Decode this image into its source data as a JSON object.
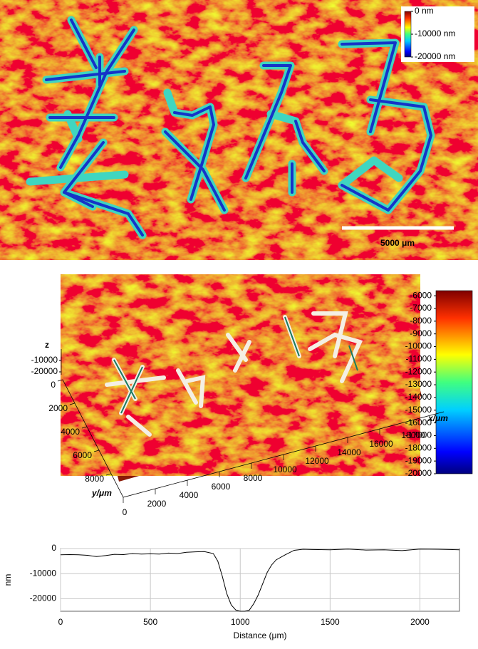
{
  "chart_data": [
    {
      "type": "height-map",
      "colorbar": {
        "lim": [
          -20000,
          0
        ],
        "ticks": [
          {
            "value": 0,
            "label": "0 nm"
          },
          {
            "value": -10000,
            "label": "-10000 nm"
          },
          {
            "value": -20000,
            "label": "-20000 nm"
          }
        ]
      },
      "scale_bar": {
        "value": 5000,
        "label": "5000 μm"
      }
    },
    {
      "type": "surface3d",
      "x_label": "x/μm",
      "y_label": "y/μm",
      "z_label": "z",
      "xlim": [
        0,
        20000
      ],
      "xticks": [
        0,
        2000,
        4000,
        6000,
        8000,
        10000,
        12000,
        14000,
        16000,
        18000
      ],
      "ylim": [
        0,
        10000
      ],
      "yticks": [
        0,
        2000,
        4000,
        6000,
        8000
      ],
      "zlim": [
        -20000,
        -10000
      ],
      "zticks": [
        -10000,
        -20000
      ],
      "colorbar": {
        "lim": [
          -20000,
          -5600
        ],
        "ticks": [
          -6000,
          -7000,
          -8000,
          -9000,
          -10000,
          -11000,
          -12000,
          -13000,
          -14000,
          -15000,
          -16000,
          -17000,
          -18000,
          -19000,
          -20000
        ]
      }
    },
    {
      "type": "line",
      "x_label": "Distance (μm)",
      "y_label": "nm",
      "xlim": [
        0,
        2220
      ],
      "xticks": [
        0,
        500,
        1000,
        1500,
        2000
      ],
      "ylim": [
        -25000,
        0
      ],
      "yticks": [
        0,
        -10000,
        -20000
      ],
      "grid": true,
      "color": "#000000",
      "x": [
        0,
        50,
        100,
        150,
        200,
        250,
        300,
        350,
        400,
        450,
        500,
        550,
        600,
        650,
        700,
        750,
        800,
        850,
        875,
        900,
        925,
        950,
        975,
        1000,
        1025,
        1050,
        1075,
        1100,
        1125,
        1150,
        1175,
        1200,
        1250,
        1300,
        1350,
        1400,
        1500,
        1600,
        1700,
        1800,
        1900,
        2000,
        2100,
        2220
      ],
      "values": [
        -2500,
        -2400,
        -2500,
        -2700,
        -3200,
        -2800,
        -2300,
        -2400,
        -2000,
        -2200,
        -2100,
        -2200,
        -1800,
        -2000,
        -1500,
        -1300,
        -1200,
        -2000,
        -5000,
        -11000,
        -18000,
        -22500,
        -24500,
        -25000,
        -25000,
        -24600,
        -22000,
        -18500,
        -14000,
        -9500,
        -6500,
        -4500,
        -2500,
        -700,
        -300,
        -400,
        -500,
        -200,
        -600,
        -500,
        -800,
        -200,
        -300,
        -500
      ]
    }
  ]
}
